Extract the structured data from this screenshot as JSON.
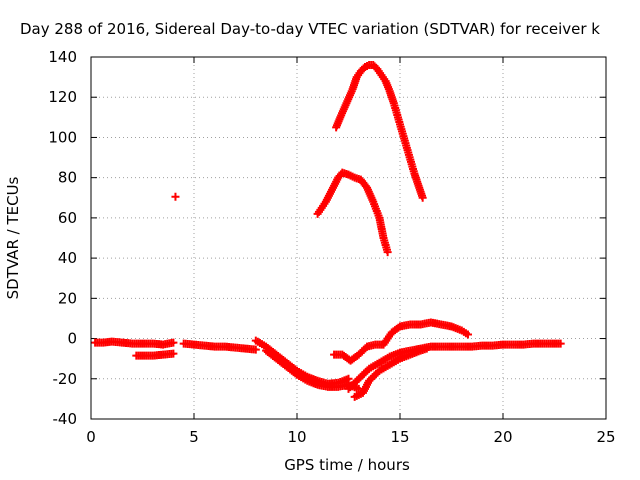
{
  "chart_data": {
    "type": "scatter",
    "title": "Day 288 of 2016, Sidereal Day-to-day VTEC variation (SDTVAR) for receiver k",
    "xlabel": "GPS time / hours",
    "ylabel": "SDTVAR / TECUs",
    "xlim": [
      0,
      25
    ],
    "ylim": [
      -40,
      140
    ],
    "xticks": [
      0,
      5,
      10,
      15,
      20,
      25
    ],
    "yticks": [
      -40,
      -20,
      0,
      20,
      40,
      60,
      80,
      100,
      120,
      140
    ],
    "grid": true,
    "marker": "+",
    "color": "#ff0000",
    "series": [
      {
        "x": [
          0.2,
          0.6,
          1.0,
          1.5,
          2.0,
          2.5,
          3.0,
          3.5,
          4.0
        ],
        "y": [
          -2,
          -2,
          -1.5,
          -2,
          -2.5,
          -2.5,
          -2.5,
          -3,
          -2
        ]
      },
      {
        "x": [
          2.2,
          2.6,
          3.0,
          3.5,
          4.0
        ],
        "y": [
          -8.5,
          -8.5,
          -8.5,
          -8,
          -7.5
        ]
      },
      {
        "x": [
          4.1
        ],
        "y": [
          70.5
        ]
      },
      {
        "x": [
          4.5,
          5.0,
          5.5,
          6.0,
          6.5,
          7.0,
          7.5,
          8.0
        ],
        "y": [
          -2.5,
          -3,
          -3.5,
          -4,
          -4,
          -4.5,
          -5,
          -5.5
        ]
      },
      {
        "x": [
          8.0,
          8.5,
          9.0,
          9.5,
          10.0,
          10.5,
          11.0,
          11.5,
          12.0,
          12.5
        ],
        "y": [
          -1,
          -4,
          -8,
          -12,
          -16,
          -19,
          -21,
          -22.5,
          -22,
          -20
        ]
      },
      {
        "x": [
          8.5,
          9.0,
          9.5,
          10.0,
          10.5,
          11.0,
          11.5,
          12.0,
          12.5,
          13.0
        ],
        "y": [
          -6,
          -10,
          -14,
          -18,
          -21,
          -23,
          -24,
          -24,
          -23,
          -25
        ]
      },
      {
        "x": [
          11.0,
          11.4,
          11.8,
          12.0,
          12.2,
          12.5,
          12.8,
          13.1,
          13.4,
          13.7,
          14.0,
          14.2,
          14.4
        ],
        "y": [
          62,
          68,
          76,
          80,
          82.5,
          81.5,
          80,
          79,
          75,
          68,
          60,
          50,
          43
        ]
      },
      {
        "x": [
          11.9,
          12.1,
          12.4,
          12.7,
          12.9,
          13.1,
          13.3,
          13.5,
          13.7,
          13.9,
          14.1,
          14.3,
          14.5,
          14.7,
          14.9,
          15.1,
          15.3,
          15.5,
          15.7,
          15.9,
          16.1
        ],
        "y": [
          105,
          110,
          117,
          124,
          130,
          133,
          135,
          136,
          136,
          134,
          131,
          128,
          123,
          117,
          110,
          103,
          96,
          89,
          82,
          76,
          70
        ]
      },
      {
        "x": [
          11.8,
          12.2,
          12.6,
          13.0,
          13.4,
          13.8,
          14.2,
          14.6,
          15.0,
          15.5,
          16.0,
          16.5,
          17.0,
          17.5,
          18.0,
          18.3
        ],
        "y": [
          -8,
          -8,
          -11,
          -8,
          -4,
          -3,
          -3,
          3,
          6,
          7,
          7,
          8,
          7,
          6,
          4,
          2
        ]
      },
      {
        "x": [
          12.5,
          13.0,
          13.5,
          14.0,
          14.5,
          15.0,
          15.5,
          16.0,
          16.5,
          17.0,
          17.5,
          18.0,
          18.5,
          19.0,
          19.5,
          20.0,
          20.5,
          21.0,
          21.5,
          22.0,
          22.5,
          22.8
        ],
        "y": [
          -25,
          -20,
          -15,
          -12,
          -9,
          -7,
          -6,
          -5,
          -4,
          -4,
          -4,
          -4,
          -4,
          -3.5,
          -3.5,
          -3,
          -3,
          -3,
          -2.5,
          -2.5,
          -2.5,
          -2.5
        ]
      },
      {
        "x": [
          12.8,
          13.2,
          13.5,
          14.0,
          14.5,
          15.0,
          15.5,
          16.0,
          16.3
        ],
        "y": [
          -29,
          -27,
          -21,
          -16,
          -13,
          -10,
          -8,
          -6,
          -5
        ]
      }
    ]
  }
}
